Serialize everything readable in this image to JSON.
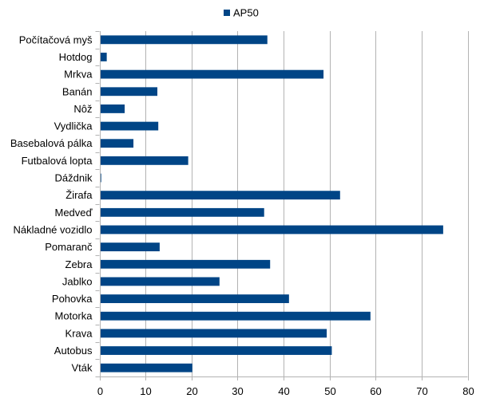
{
  "chart_data": {
    "type": "bar",
    "orientation": "horizontal",
    "title": "",
    "xlabel": "",
    "ylabel": "",
    "xlim": [
      0,
      80
    ],
    "x_ticks": [
      0,
      10,
      20,
      30,
      40,
      50,
      60,
      70,
      80
    ],
    "grid": "vertical",
    "legend": {
      "position": "top-center"
    },
    "categories": [
      "Počítačová myš",
      "Hotdog",
      "Mrkva",
      "Banán",
      "Nôž",
      "Vydlička",
      "Basebalová pálka",
      "Futbalová lopta",
      "Dáždnik",
      "Žirafa",
      "Medveď",
      "Nákladné vozidlo",
      "Pomaranč",
      "Zebra",
      "Jablko",
      "Pohovka",
      "Motorka",
      "Krava",
      "Autobus",
      "Vták"
    ],
    "series": [
      {
        "name": "AP50",
        "color": "#004586",
        "values": [
          36.4,
          1.5,
          48.6,
          12.5,
          5.4,
          12.7,
          7.3,
          19.2,
          0.3,
          52.2,
          35.7,
          74.6,
          13.0,
          37.0,
          26.0,
          41.1,
          58.8,
          49.3,
          50.4,
          20.1
        ]
      }
    ]
  }
}
